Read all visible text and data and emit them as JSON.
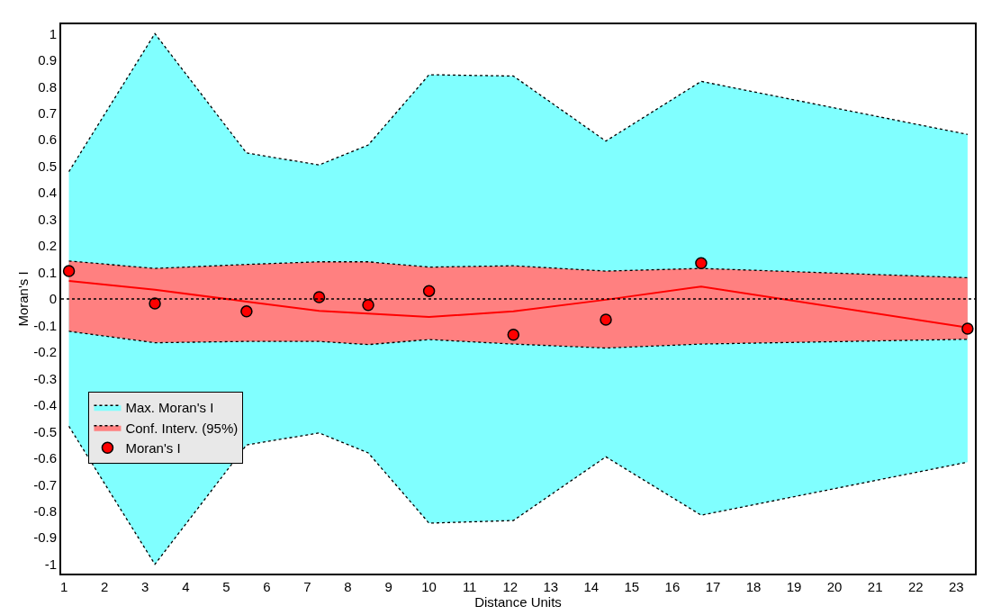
{
  "chart_data": {
    "type": "area",
    "xlabel": "Distance Units",
    "ylabel": "Moran's I",
    "x": [
      1.12,
      3.24,
      5.5,
      7.29,
      8.5,
      10.0,
      12.08,
      14.36,
      16.71,
      23.28
    ],
    "series": [
      {
        "name": "Max. Moran's I",
        "color": "#80ffff",
        "line_style": "dotted",
        "values": [
          0.48,
          1.0,
          0.55,
          0.505,
          0.58,
          0.845,
          0.84,
          0.595,
          0.82,
          0.62
        ]
      },
      {
        "color": "#80ffff",
        "line_style": "dotted",
        "values": [
          -0.48,
          -1.0,
          -0.55,
          -0.505,
          -0.58,
          -0.845,
          -0.835,
          -0.595,
          -0.815,
          -0.615
        ]
      },
      {
        "name": "Conf. Interv. (95%)",
        "color": "#ff8080",
        "line_style": "dotted",
        "values": [
          0.143,
          0.115,
          0.13,
          0.14,
          0.14,
          0.12,
          0.125,
          0.105,
          0.115,
          0.08
        ]
      },
      {
        "color": "#ff8080",
        "line_style": "dotted",
        "values": [
          -0.122,
          -0.165,
          -0.16,
          -0.16,
          -0.172,
          -0.153,
          -0.17,
          -0.185,
          -0.17,
          -0.152
        ]
      },
      {
        "type": "line",
        "color": "#ff0000",
        "line_style": "solid",
        "marker": "none",
        "values": [
          0.068,
          0.035,
          -0.01,
          -0.045,
          -0.055,
          -0.068,
          -0.047,
          -0.003,
          0.047,
          -0.108
        ]
      },
      {
        "name": "Moran's I",
        "type": "scatter",
        "color": "#ff0000",
        "marker": "circle",
        "values": [
          0.105,
          -0.017,
          -0.047,
          0.007,
          -0.023,
          0.03,
          -0.135,
          -0.078,
          0.135,
          -0.112
        ]
      }
    ],
    "xlim": [
      0.93,
      23.46
    ],
    "ylim": [
      -1.035,
      1.035
    ],
    "xticks": [
      1,
      2,
      3,
      4,
      5,
      6,
      7,
      8,
      9,
      10,
      11,
      12,
      13,
      14,
      15,
      16,
      17,
      18,
      19,
      20,
      21,
      22,
      23
    ],
    "yticks": [
      -1,
      -0.9,
      -0.8,
      -0.7,
      -0.6,
      -0.5,
      -0.4,
      -0.3,
      -0.2,
      -0.1,
      0,
      0.1,
      0.2,
      0.3,
      0.4,
      0.5,
      0.6,
      0.7,
      0.8,
      0.9,
      1
    ],
    "ref_lines": [
      {
        "axis": "y",
        "value": 0,
        "color": "#000000",
        "line_style": "dotted"
      }
    ],
    "legend": "bottom left"
  }
}
